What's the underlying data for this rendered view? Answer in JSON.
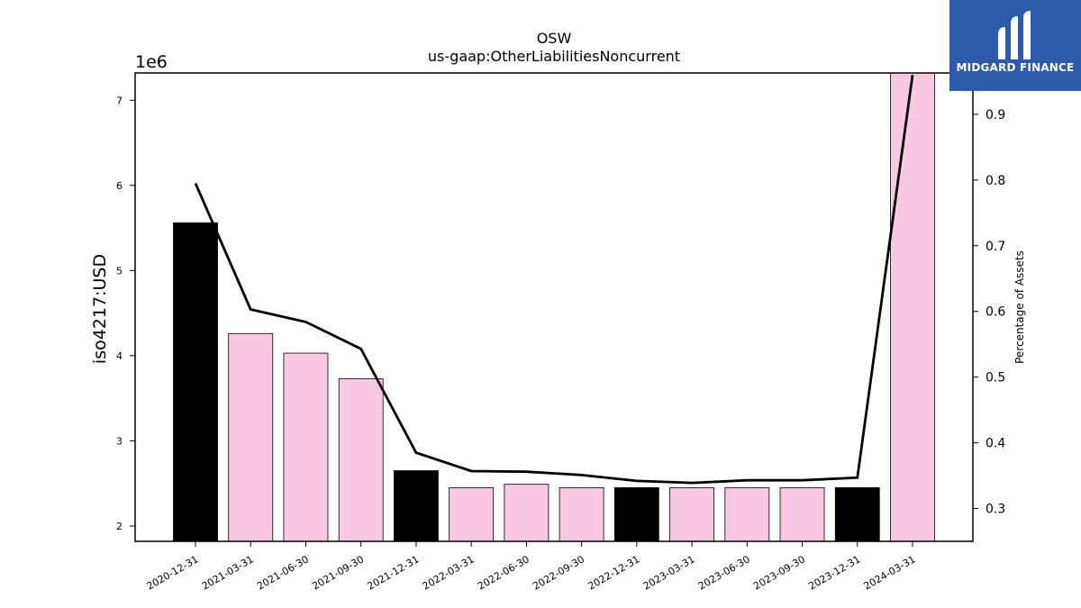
{
  "chart_data": {
    "type": "bar",
    "title": "OSW",
    "subtitle": "us-gaap:OtherLiabilitiesNoncurrent",
    "ylabel": "iso4217:USD",
    "y_offset_label": "1e6",
    "y2label": "Percentage of Assets",
    "categories": [
      "2020-12-31",
      "2021-03-31",
      "2021-06-30",
      "2021-09-30",
      "2021-12-31",
      "2022-03-31",
      "2022-06-30",
      "2022-09-30",
      "2022-12-31",
      "2023-03-31",
      "2023-06-30",
      "2023-09-30",
      "2023-12-31",
      "2024-03-31"
    ],
    "values": [
      5.56,
      4.26,
      4.03,
      3.73,
      2.65,
      2.45,
      2.49,
      2.45,
      2.45,
      2.45,
      2.45,
      2.45,
      2.45,
      7.32
    ],
    "bar_colors": [
      "#000000",
      "#fbc8e4",
      "#fbc8e4",
      "#fbc8e4",
      "#000000",
      "#fbc8e4",
      "#fbc8e4",
      "#fbc8e4",
      "#000000",
      "#fbc8e4",
      "#fbc8e4",
      "#fbc8e4",
      "#000000",
      "#fbc8e4"
    ],
    "ylim": [
      1.82,
      7.32
    ],
    "yticks": [
      2,
      3,
      4,
      5,
      6,
      7
    ],
    "line_series": {
      "name": "Percentage of Assets",
      "values": [
        0.795,
        0.603,
        0.584,
        0.543,
        0.385,
        0.357,
        0.356,
        0.351,
        0.342,
        0.339,
        0.343,
        0.343,
        0.347,
        0.96
      ]
    },
    "y2lim": [
      0.25,
      0.963
    ],
    "y2ticks": [
      0.3,
      0.4,
      0.5,
      0.6,
      0.7,
      0.8,
      0.9
    ],
    "grid": false
  },
  "logo": {
    "text": "MIDGARD FINANCE",
    "bg": "#2d5bab"
  }
}
